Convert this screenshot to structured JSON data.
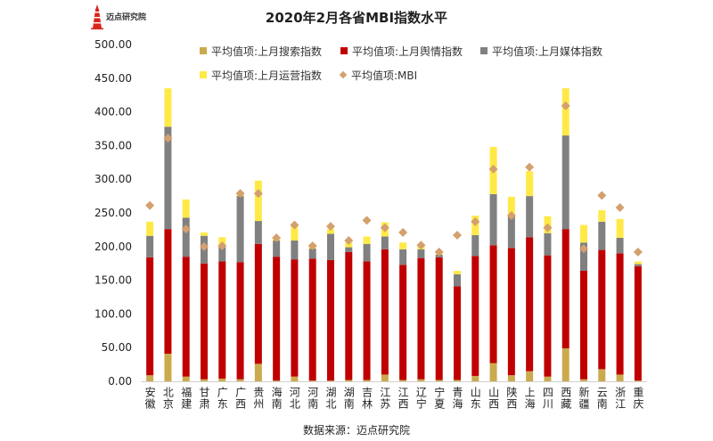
{
  "logo": {
    "text": "迈点研究院"
  },
  "chart_data": {
    "type": "bar",
    "title": "2020年2月各省MBI指数水平",
    "xlabel": "",
    "ylabel": "",
    "ylim": [
      0,
      500
    ],
    "ytick_labels": [
      "0.00",
      "50.00",
      "100.00",
      "150.00",
      "200.00",
      "250.00",
      "300.00",
      "350.00",
      "400.00",
      "450.00",
      "500.00"
    ],
    "legend": "top",
    "categories": [
      "安徽",
      "北京",
      "福建",
      "甘肃",
      "广东",
      "广西",
      "贵州",
      "海南",
      "河北",
      "河南",
      "湖北",
      "湖南",
      "吉林",
      "江苏",
      "江西",
      "辽宁",
      "宁夏",
      "青海",
      "山东",
      "山西",
      "陕西",
      "上海",
      "四川",
      "西藏",
      "新疆",
      "云南",
      "浙江",
      "重庆"
    ],
    "series": [
      {
        "name": "平均值项:上月搜索指数",
        "stacked": true,
        "color": "#CBAA4E",
        "values": [
          9,
          41,
          7,
          3,
          4,
          3,
          26,
          1,
          7,
          1,
          1,
          2,
          2,
          10,
          2,
          3,
          2,
          2,
          8,
          27,
          9,
          15,
          7,
          49,
          3,
          18,
          10,
          1
        ]
      },
      {
        "name": "平均值项:上月舆情指数",
        "stacked": true,
        "color": "#C00000",
        "values": [
          175,
          185,
          178,
          172,
          174,
          174,
          178,
          184,
          174,
          181,
          179,
          190,
          176,
          186,
          171,
          180,
          182,
          139,
          178,
          175,
          189,
          199,
          180,
          177,
          161,
          177,
          180,
          170
        ]
      },
      {
        "name": "平均值项:上月媒体指数",
        "stacked": true,
        "color": "#808080",
        "values": [
          32,
          152,
          58,
          41,
          24,
          98,
          34,
          24,
          28,
          15,
          39,
          7,
          26,
          19,
          23,
          13,
          4,
          18,
          31,
          76,
          47,
          61,
          33,
          139,
          42,
          42,
          23,
          3
        ]
      },
      {
        "name": "平均值项:上月运营指数",
        "stacked": true,
        "color": "#FFE947",
        "values": [
          21,
          57,
          27,
          5,
          12,
          5,
          60,
          5,
          21,
          7,
          7,
          7,
          11,
          21,
          10,
          5,
          2,
          5,
          29,
          70,
          29,
          37,
          25,
          70,
          26,
          17,
          28,
          4
        ]
      },
      {
        "name": "平均值项:MBI",
        "stacked": false,
        "color": "#D4A06E",
        "values": [
          261,
          361,
          226,
          200,
          201,
          279,
          279,
          213,
          232,
          201,
          230,
          209,
          239,
          228,
          221,
          202,
          192,
          217,
          237,
          315,
          246,
          318,
          228,
          409,
          197,
          276,
          258,
          192
        ]
      }
    ]
  },
  "source": "数据来源：迈点研究院"
}
